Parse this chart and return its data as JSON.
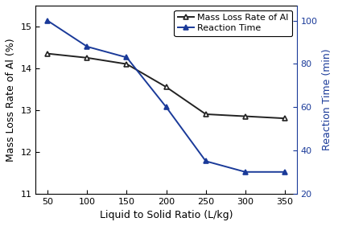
{
  "x": [
    50,
    100,
    150,
    200,
    250,
    300,
    350
  ],
  "mass_loss_rate": [
    14.35,
    14.25,
    14.1,
    13.55,
    12.9,
    12.85,
    12.8
  ],
  "reaction_time": [
    100,
    88,
    83,
    60,
    35,
    30,
    30
  ],
  "xlabel": "Liquid to Solid Ratio (L/kg)",
  "ylabel_left": "Mass Loss Rate of Al (%)",
  "ylabel_right": "Reaction Time (min)",
  "ylim_left": [
    11,
    15.5
  ],
  "ylim_right": [
    20,
    107
  ],
  "yticks_left": [
    11,
    12,
    13,
    14,
    15
  ],
  "yticks_right": [
    20,
    40,
    60,
    80,
    100
  ],
  "xticks": [
    50,
    100,
    150,
    200,
    250,
    300,
    350
  ],
  "legend_mass": "Mass Loss Rate of Al",
  "legend_time": "Reaction Time",
  "line_color_mass": "#222222",
  "line_color_time": "#1a3a99",
  "bg_color": "#ffffff",
  "fontsize": 9,
  "tick_fontsize": 8,
  "linewidth": 1.4,
  "markersize": 5
}
